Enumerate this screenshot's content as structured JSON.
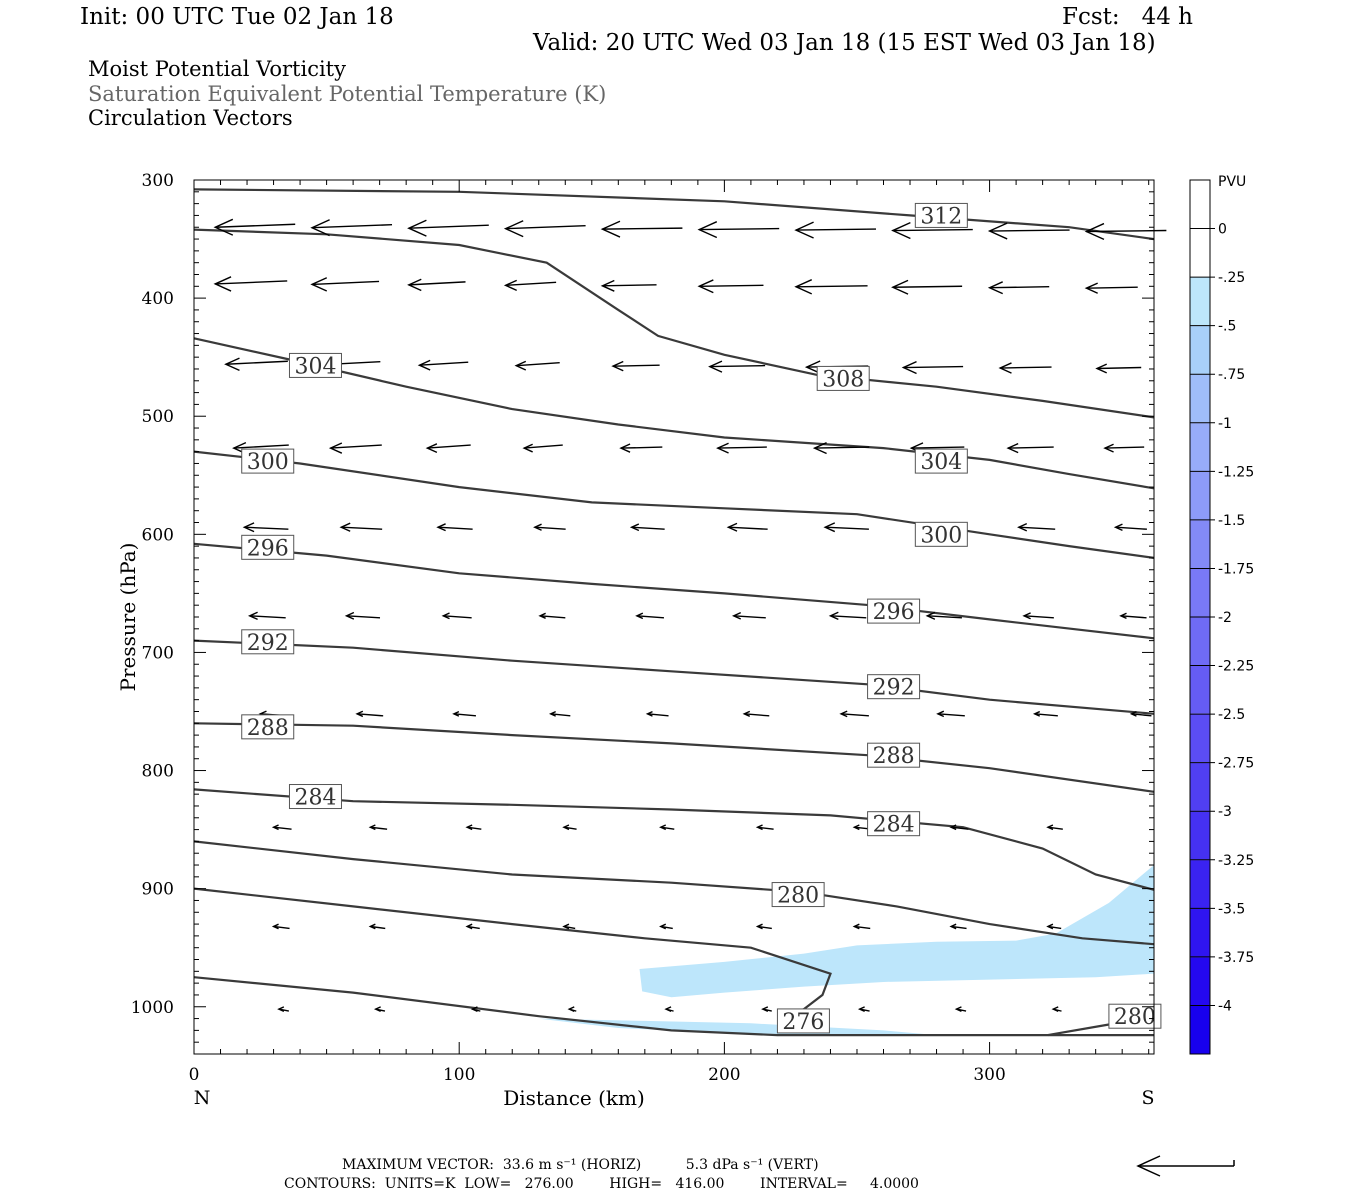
{
  "header": {
    "init": "Init: 00 UTC Tue 02 Jan 18",
    "fcst": "Fcst:   44 h",
    "valid": "Valid: 20 UTC Wed 03 Jan 18 (15 EST Wed 03 Jan 18)",
    "line1": "Moist Potential Vorticity",
    "line2": "Saturation Equivalent Potential Temperature (K)",
    "line3": "Circulation Vectors"
  },
  "footer": {
    "max_vector": "MAXIMUM VECTOR:  33.6 m s⁻¹ (HORIZ)          5.3 dPa s⁻¹ (VERT)",
    "contours": "CONTOURS:  UNITS=K  LOW=   276.00        HIGH=   416.00        INTERVAL=     4.0000"
  },
  "chart_data": {
    "type": "cross-section",
    "xlabel": "Distance (km)",
    "ylabel": "Pressure (hPa)",
    "xlim": [
      0,
      362
    ],
    "ylim": [
      1040,
      300
    ],
    "x_ticks": [
      "0",
      "100",
      "200",
      "300"
    ],
    "y_ticks": [
      "300",
      "400",
      "500",
      "600",
      "700",
      "800",
      "900",
      "1000"
    ],
    "x_end_labels": {
      "left": "N",
      "right": "S"
    },
    "colorbar": {
      "label": "PVU",
      "levels": [
        "0",
        "-.25",
        "-.5",
        "-.75",
        "-1",
        "-1.25",
        "-1.5",
        "-1.75",
        "-2",
        "-2.25",
        "-2.5",
        "-2.75",
        "-3",
        "-3.25",
        "-3.5",
        "-3.75",
        "-4"
      ],
      "colors": [
        "#ffffff",
        "#ffffff",
        "#bde6fb",
        "#a8d0fa",
        "#9fbdfa",
        "#97acf9",
        "#8d9bf8",
        "#838af7",
        "#7979f6",
        "#6f6bf5",
        "#655cf4",
        "#5b4df4",
        "#503ff3",
        "#4531f2",
        "#3a23f1",
        "#2f15f0",
        "#2408ef",
        "#1800ee"
      ]
    },
    "pv_shading": {
      "color": "#bde6fb",
      "regions": [
        [
          [
            168,
            968
          ],
          [
            200,
            962
          ],
          [
            230,
            955
          ],
          [
            250,
            948
          ],
          [
            280,
            945
          ],
          [
            310,
            944
          ],
          [
            325,
            938
          ],
          [
            345,
            912
          ],
          [
            362,
            880
          ],
          [
            362,
            972
          ],
          [
            340,
            975
          ],
          [
            300,
            977
          ],
          [
            260,
            979
          ],
          [
            230,
            983
          ],
          [
            200,
            988
          ],
          [
            180,
            992
          ],
          [
            169,
            987
          ]
        ],
        [
          [
            130,
            1010
          ],
          [
            170,
            1012
          ],
          [
            210,
            1014
          ],
          [
            260,
            1020
          ],
          [
            280,
            1024
          ],
          [
            240,
            1024
          ],
          [
            200,
            1022
          ],
          [
            160,
            1018
          ]
        ]
      ]
    },
    "theta_contours": [
      {
        "level": 312,
        "label": "312",
        "label_at": [
          272,
          330
        ],
        "points": [
          [
            0,
            308
          ],
          [
            100,
            310
          ],
          [
            200,
            318
          ],
          [
            270,
            330
          ],
          [
            330,
            340
          ],
          [
            362,
            350
          ]
        ]
      },
      {
        "level": 308,
        "label": "308",
        "label_at": [
          235,
          468
        ],
        "points": [
          [
            0,
            342
          ],
          [
            50,
            346
          ],
          [
            100,
            355
          ],
          [
            133,
            370
          ],
          [
            160,
            410
          ],
          [
            175,
            432
          ],
          [
            200,
            448
          ],
          [
            235,
            465
          ],
          [
            280,
            475
          ],
          [
            320,
            487
          ],
          [
            362,
            501
          ]
        ]
      },
      {
        "level": 304,
        "label": "304",
        "label_at": [
          36,
          457
        ],
        "points": [
          [
            0,
            434
          ],
          [
            36,
            452
          ],
          [
            80,
            475
          ],
          [
            120,
            494
          ],
          [
            160,
            507
          ],
          [
            200,
            518
          ],
          [
            260,
            527
          ],
          [
            300,
            537
          ],
          [
            330,
            549
          ],
          [
            362,
            561
          ]
        ]
      },
      {
        "level": 304,
        "label": "304",
        "label_at": [
          272,
          538
        ],
        "points": []
      },
      {
        "level": 300,
        "label": "300",
        "label_at": [
          18,
          538
        ],
        "points": [
          [
            0,
            530
          ],
          [
            40,
            540
          ],
          [
            100,
            560
          ],
          [
            150,
            573
          ],
          [
            200,
            578
          ],
          [
            250,
            583
          ],
          [
            300,
            600
          ],
          [
            330,
            610
          ],
          [
            362,
            620
          ]
        ]
      },
      {
        "level": 300,
        "label": "300",
        "label_at": [
          272,
          600
        ],
        "points": []
      },
      {
        "level": 296,
        "label": "296",
        "label_at": [
          18,
          611
        ],
        "points": [
          [
            0,
            608
          ],
          [
            50,
            618
          ],
          [
            100,
            633
          ],
          [
            150,
            642
          ],
          [
            200,
            650
          ],
          [
            255,
            660
          ],
          [
            300,
            672
          ],
          [
            362,
            688
          ]
        ]
      },
      {
        "level": 296,
        "label": "296",
        "label_at": [
          254,
          665
        ],
        "points": []
      },
      {
        "level": 292,
        "label": "292",
        "label_at": [
          18,
          691
        ],
        "points": [
          [
            0,
            690
          ],
          [
            60,
            696
          ],
          [
            120,
            707
          ],
          [
            180,
            716
          ],
          [
            254,
            727
          ],
          [
            300,
            740
          ],
          [
            362,
            752
          ]
        ]
      },
      {
        "level": 292,
        "label": "292",
        "label_at": [
          254,
          729
        ],
        "points": []
      },
      {
        "level": 288,
        "label": "288",
        "label_at": [
          18,
          763
        ],
        "points": [
          [
            0,
            760
          ],
          [
            60,
            762
          ],
          [
            120,
            770
          ],
          [
            180,
            777
          ],
          [
            254,
            787
          ],
          [
            300,
            798
          ],
          [
            362,
            818
          ]
        ]
      },
      {
        "level": 288,
        "label": "288",
        "label_at": [
          254,
          787
        ],
        "points": []
      },
      {
        "level": 284,
        "label": "284",
        "label_at": [
          36,
          822
        ],
        "points": [
          [
            0,
            816
          ],
          [
            60,
            826
          ],
          [
            120,
            829
          ],
          [
            180,
            833
          ],
          [
            240,
            838
          ],
          [
            290,
            848
          ],
          [
            320,
            866
          ],
          [
            340,
            888
          ],
          [
            362,
            901
          ]
        ]
      },
      {
        "level": 284,
        "label": "284",
        "label_at": [
          254,
          845
        ],
        "points": []
      },
      {
        "level": 280,
        "label": "280",
        "label_at": [
          218,
          905
        ],
        "points": [
          [
            0,
            860
          ],
          [
            60,
            875
          ],
          [
            120,
            888
          ],
          [
            180,
            895
          ],
          [
            230,
            903
          ],
          [
            265,
            915
          ],
          [
            300,
            930
          ],
          [
            335,
            942
          ],
          [
            362,
            947
          ]
        ]
      },
      {
        "level": 280,
        "label": "280",
        "label_at": [
          345,
          1008
        ],
        "points": [
          [
            322,
            1024
          ],
          [
            345,
            1015
          ],
          [
            362,
            1006
          ]
        ]
      },
      {
        "level": 276,
        "label": "276",
        "label_at": [
          220,
          1012
        ],
        "points": [
          [
            0,
            900
          ],
          [
            60,
            915
          ],
          [
            120,
            930
          ],
          [
            170,
            942
          ],
          [
            210,
            950
          ],
          [
            240,
            972
          ],
          [
            237,
            990
          ],
          [
            230,
            1002
          ],
          [
            220,
            1010
          ]
        ]
      },
      {
        "level": 276,
        "label": "",
        "label_at": null,
        "points": [
          [
            0,
            975
          ],
          [
            60,
            988
          ],
          [
            130,
            1008
          ],
          [
            180,
            1020
          ],
          [
            220,
            1024
          ],
          [
            362,
            1024
          ]
        ]
      }
    ]
  }
}
